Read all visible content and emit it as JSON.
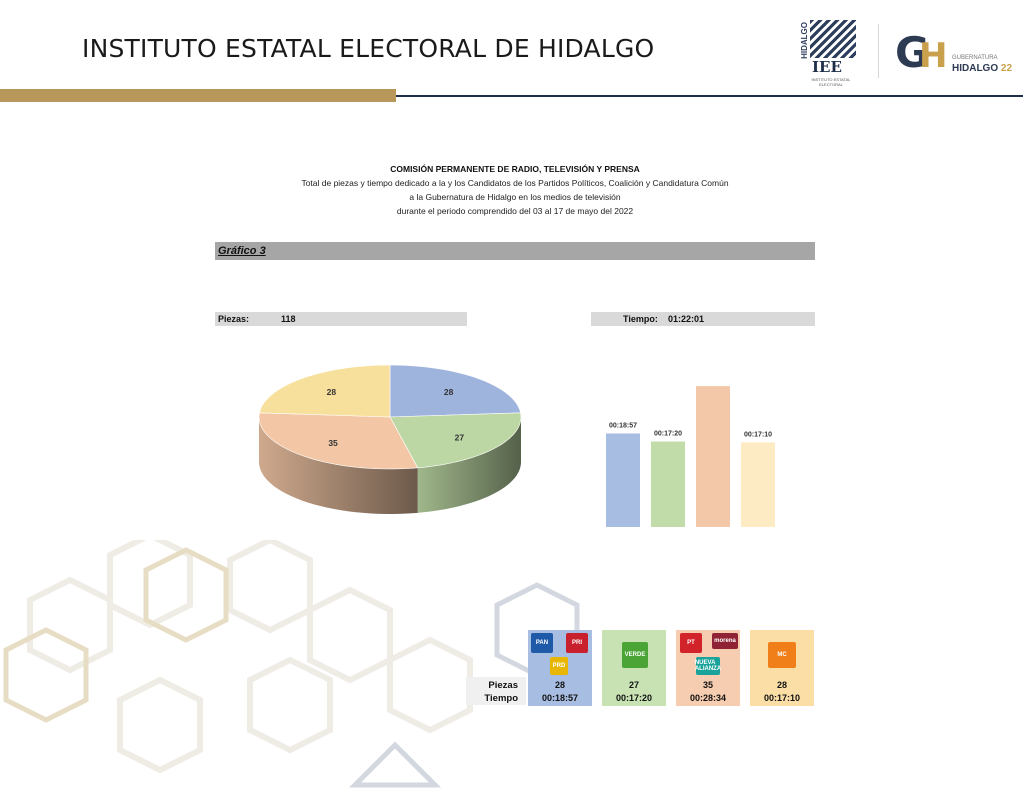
{
  "header": {
    "title": "INSTITUTO ESTATAL ELECTORAL DE HIDALGO",
    "logo_ieee": {
      "vertical_text": "HIDALGO",
      "text": "IEE",
      "subtext": "INSTITUTO ESTATAL ELECTORAL"
    },
    "logo_gh": {
      "g": "G",
      "h": "H",
      "small": "GUBERNATURA",
      "main": "HIDALGO",
      "year": "22"
    }
  },
  "report": {
    "title": "COMISIÓN PERMANENTE DE RADIO, TELEVISIÓN Y PRENSA",
    "line1": "Total de piezas y tiempo dedicado a la y los Candidatos de los Partidos Políticos, Coalición y Candidatura Común",
    "line2": "a la Gubernatura de Hidalgo en los medios de televisión",
    "line3": "durante el periodo comprendido del 03 al 17 de mayo del 2022"
  },
  "grafico_label": "Gráfico 3",
  "summary": {
    "piezas_label": "Piezas:",
    "piezas_value": "118",
    "tiempo_label": "Tiempo:",
    "tiempo_value": "01:22:01"
  },
  "chart_data": [
    {
      "type": "pie",
      "title": "",
      "categories": [
        "PAN-PRI-PRD",
        "PVEM",
        "PT-MORENA-NUEVA ALIANZA",
        "MC"
      ],
      "values": [
        28,
        27,
        35,
        28
      ],
      "colors": [
        "#9fb4dd",
        "#bcd7a4",
        "#f3c7a6",
        "#f7df9c"
      ],
      "three_d": true
    },
    {
      "type": "bar",
      "title": "",
      "categories": [
        "PAN-PRI-PRD",
        "PVEM",
        "PT-MORENA-NUEVA ALIANZA",
        "MC"
      ],
      "values": [
        "00:18:57",
        "00:17:20",
        "00:28:34",
        "00:17:10"
      ],
      "values_seconds": [
        1137,
        1040,
        1714,
        1030
      ],
      "colors": [
        "#a8bde2",
        "#c1dca8",
        "#f3c8a8",
        "#fcebc3"
      ],
      "ylim_seconds": [
        0,
        1800
      ],
      "grid": false
    }
  ],
  "table": {
    "row_labels": {
      "piezas": "Piezas",
      "tiempo": "Tiempo"
    },
    "columns": [
      {
        "piezas": "28",
        "tiempo": "00:18:57",
        "bg": "#a8bde2",
        "logos": [
          {
            "name": "pan-logo-icon",
            "text": "PAN",
            "color": "#1f5aa8"
          },
          {
            "name": "pri-logo-icon",
            "text": "PRI",
            "color": "#c8202c"
          },
          {
            "name": "prd-logo-icon",
            "text": "PRD",
            "color": "#e8b600"
          }
        ]
      },
      {
        "piezas": "27",
        "tiempo": "00:17:20",
        "bg": "#c8e2b4",
        "logos": [
          {
            "name": "pvem-logo-icon",
            "text": "VERDE",
            "color": "#4aa536"
          }
        ]
      },
      {
        "piezas": "35",
        "tiempo": "00:28:34",
        "bg": "#f6cdb0",
        "logos": [
          {
            "name": "pt-logo-icon",
            "text": "PT",
            "color": "#d3232a"
          },
          {
            "name": "morena-logo-icon",
            "text": "morena",
            "color": "#8f2234"
          },
          {
            "name": "nueva-alianza-logo-icon",
            "text": "NUEVA ALIANZA",
            "color": "#1aa39a"
          }
        ]
      },
      {
        "piezas": "28",
        "tiempo": "00:17:10",
        "bg": "#fbdea6",
        "logos": [
          {
            "name": "mc-logo-icon",
            "text": "MC",
            "color": "#f07f1a"
          }
        ]
      }
    ]
  }
}
